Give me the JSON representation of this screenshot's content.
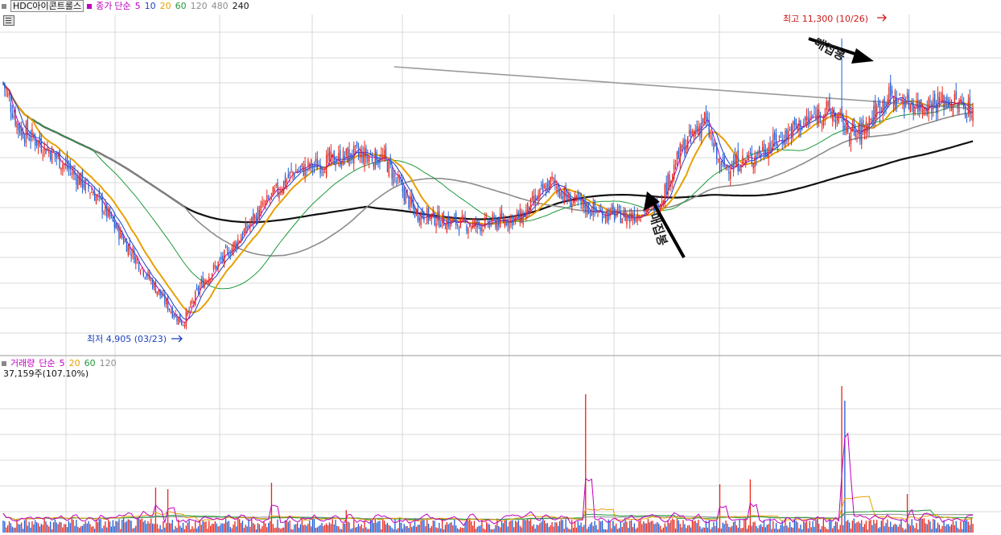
{
  "header": {
    "symbol": "HDC아이콘트롤스",
    "price_label": "종가",
    "ma_type": "단순",
    "ma_periods": [
      {
        "label": "5",
        "color": "#c000c0"
      },
      {
        "label": "10",
        "color": "#1f3fbf"
      },
      {
        "label": "20",
        "color": "#e8a000"
      },
      {
        "label": "60",
        "color": "#1e9a3a"
      },
      {
        "label": "120",
        "color": "#8c8c8c"
      },
      {
        "label": "480",
        "color": "#8c8c8c"
      },
      {
        "label": "240",
        "color": "#111111"
      }
    ]
  },
  "volume_header": {
    "title": "거래량",
    "ma_type": "단순",
    "ma_periods": [
      {
        "label": "5",
        "color": "#c000c0"
      },
      {
        "label": "20",
        "color": "#e8a000"
      },
      {
        "label": "60",
        "color": "#1e9a3a"
      },
      {
        "label": "120",
        "color": "#8c8c8c"
      }
    ],
    "current": "37,159주(107.10%)"
  },
  "annotations": {
    "high": "최고 11,300 (10/26)",
    "low": "최저 4,905 (03/23)",
    "stamp_top": "매집봉",
    "stamp_bottom": "매집봉"
  },
  "colors": {
    "up": "#e8291c",
    "down": "#1f5fd6",
    "grid": "#d9d9d9",
    "divider": "#999999"
  },
  "chart_data": {
    "type": "candlestick",
    "price": {
      "high": 11300,
      "high_date": "10/26",
      "low": 4905,
      "low_date": "03/23"
    },
    "price_path": [
      [
        0,
        10300
      ],
      [
        10,
        9300
      ],
      [
        30,
        8800
      ],
      [
        60,
        7800
      ],
      [
        90,
        6200
      ],
      [
        110,
        5200
      ],
      [
        118,
        4905
      ],
      [
        130,
        5800
      ],
      [
        150,
        6600
      ],
      [
        170,
        7500
      ],
      [
        190,
        8300
      ],
      [
        210,
        8500
      ],
      [
        230,
        8700
      ],
      [
        250,
        8600
      ],
      [
        270,
        7400
      ],
      [
        290,
        7200
      ],
      [
        310,
        7100
      ],
      [
        340,
        7300
      ],
      [
        360,
        8100
      ],
      [
        370,
        7700
      ],
      [
        390,
        7400
      ],
      [
        410,
        7300
      ],
      [
        430,
        7600
      ],
      [
        445,
        8800
      ],
      [
        460,
        9500
      ],
      [
        470,
        8400
      ],
      [
        490,
        8600
      ],
      [
        520,
        9300
      ],
      [
        540,
        9700
      ],
      [
        560,
        9100
      ],
      [
        580,
        10000
      ],
      [
        600,
        9800
      ],
      [
        620,
        9900
      ],
      [
        636,
        9700
      ]
    ],
    "volume_spikes": [
      [
        382,
        "up",
        0.86
      ],
      [
        550,
        "up",
        0.91
      ],
      [
        552,
        "down",
        0.82
      ],
      [
        470,
        "up",
        0.3
      ],
      [
        490,
        "up",
        0.33
      ],
      [
        176,
        "up",
        0.31
      ],
      [
        100,
        "up",
        0.28
      ],
      [
        108,
        "up",
        0.27
      ],
      [
        593,
        "up",
        0.24
      ],
      [
        225,
        "up",
        0.14
      ]
    ],
    "volume_base_level": 0.06,
    "volume_current": 37159,
    "volume_current_pct": 107.1
  }
}
